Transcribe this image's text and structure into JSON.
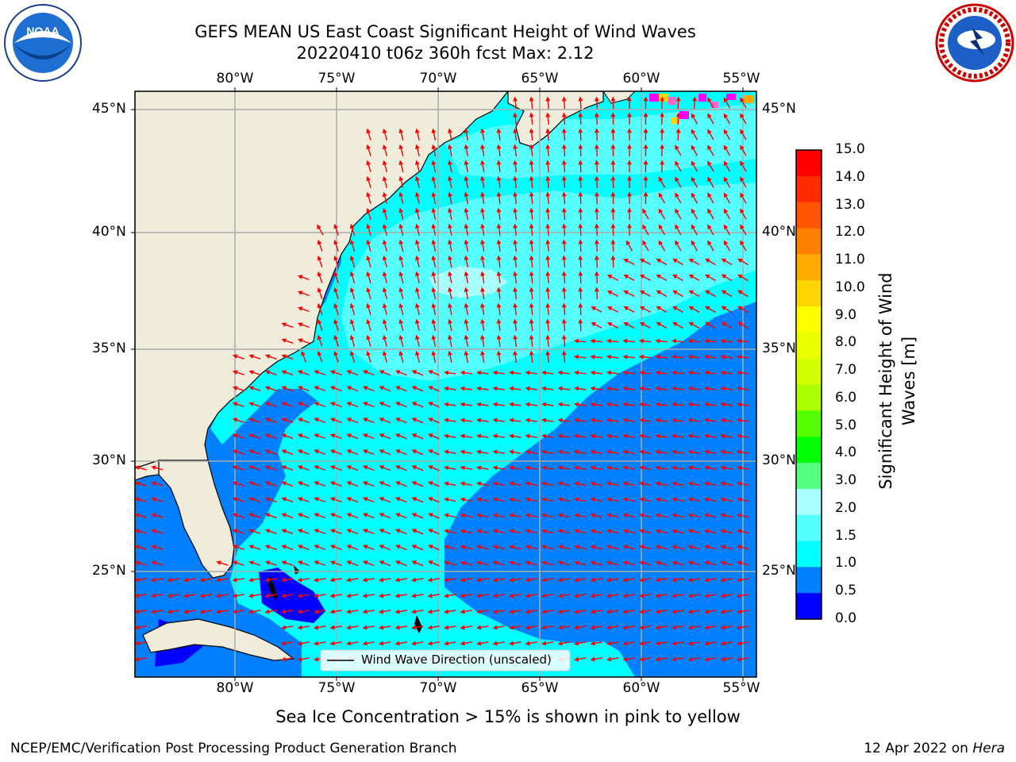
{
  "header": {
    "title_line1": "GEFS MEAN US East Coast Significant Height of Wind Waves",
    "title_line2": "20220410 t06z 360h fcst   Max: 2.12"
  },
  "logos": {
    "left": {
      "name": "noaa-logo",
      "text": "NOAA"
    },
    "right": {
      "name": "nws-logo"
    }
  },
  "map": {
    "lon_labels": [
      "80°W",
      "75°W",
      "70°W",
      "65°W",
      "60°W",
      "55°W"
    ],
    "lat_labels": [
      "45°N",
      "40°N",
      "35°N",
      "30°N",
      "25°N"
    ],
    "legend_text": "Wind Wave Direction (unscaled)",
    "land_color": "#efecdc",
    "ocean_colors": {
      "0.5-1.0": "#0080ff",
      "1.0-1.5": "#00ffff",
      "1.5-2.0": "#55ffff",
      "2.0-3.0": "#aaffff"
    },
    "arrow_color": "#ff0000"
  },
  "colorbar": {
    "label": "Significant Height of Wind Waves [m]",
    "label_line1": "Significant Height of Wind",
    "label_line2": "Waves [m]",
    "ticks": [
      "15.0",
      "14.0",
      "13.0",
      "12.0",
      "11.0",
      "10.0",
      "9.0",
      "8.0",
      "7.0",
      "6.0",
      "5.0",
      "4.0",
      "3.0",
      "2.0",
      "1.5",
      "1.0",
      "0.5",
      "0.0"
    ],
    "colors_top_to_bottom": [
      "#ff0000",
      "#ff2a00",
      "#ff5500",
      "#ff8000",
      "#ffaa00",
      "#ffd500",
      "#ffff00",
      "#eaff00",
      "#d4ff00",
      "#aaff00",
      "#55ff00",
      "#00ff00",
      "#55ff80",
      "#aaffff",
      "#55ffff",
      "#00ffff",
      "#0080ff",
      "#0000ff"
    ]
  },
  "note": "Sea Ice Concentration > 15% is shown in pink to yellow",
  "footer": {
    "left": "NCEP/EMC/Verification Post Processing Product Generation Branch",
    "date": "12 Apr 2022 on ",
    "machine": "Hera"
  }
}
